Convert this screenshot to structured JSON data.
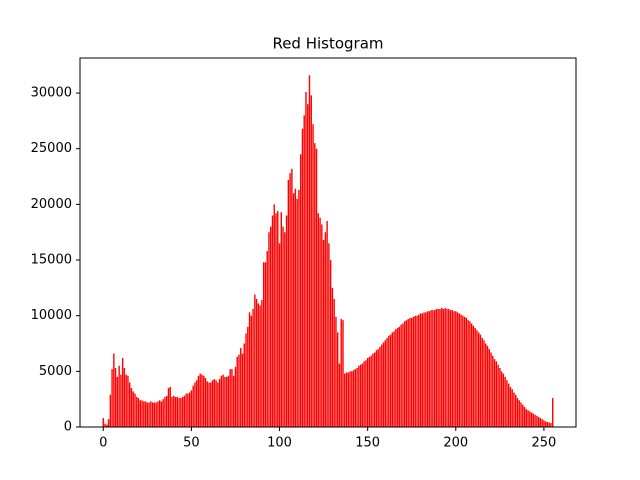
{
  "chart_data": {
    "type": "bar",
    "title": "Red Histogram",
    "color": "#ff0000",
    "bar_width": 0.8,
    "x": [
      0,
      1,
      2,
      3,
      4,
      5,
      6,
      7,
      8,
      9,
      10,
      11,
      12,
      13,
      14,
      15,
      16,
      17,
      18,
      19,
      20,
      21,
      22,
      23,
      24,
      25,
      26,
      27,
      28,
      29,
      30,
      31,
      32,
      33,
      34,
      35,
      36,
      37,
      38,
      39,
      40,
      41,
      42,
      43,
      44,
      45,
      46,
      47,
      48,
      49,
      50,
      51,
      52,
      53,
      54,
      55,
      56,
      57,
      58,
      59,
      60,
      61,
      62,
      63,
      64,
      65,
      66,
      67,
      68,
      69,
      70,
      71,
      72,
      73,
      74,
      75,
      76,
      77,
      78,
      79,
      80,
      81,
      82,
      83,
      84,
      85,
      86,
      87,
      88,
      89,
      90,
      91,
      92,
      93,
      94,
      95,
      96,
      97,
      98,
      99,
      100,
      101,
      102,
      103,
      104,
      105,
      106,
      107,
      108,
      109,
      110,
      111,
      112,
      113,
      114,
      115,
      116,
      117,
      118,
      119,
      120,
      121,
      122,
      123,
      124,
      125,
      126,
      127,
      128,
      129,
      130,
      131,
      132,
      133,
      134,
      135,
      136,
      137,
      138,
      139,
      140,
      141,
      142,
      143,
      144,
      145,
      146,
      147,
      148,
      149,
      150,
      151,
      152,
      153,
      154,
      155,
      156,
      157,
      158,
      159,
      160,
      161,
      162,
      163,
      164,
      165,
      166,
      167,
      168,
      169,
      170,
      171,
      172,
      173,
      174,
      175,
      176,
      177,
      178,
      179,
      180,
      181,
      182,
      183,
      184,
      185,
      186,
      187,
      188,
      189,
      190,
      191,
      192,
      193,
      194,
      195,
      196,
      197,
      198,
      199,
      200,
      201,
      202,
      203,
      204,
      205,
      206,
      207,
      208,
      209,
      210,
      211,
      212,
      213,
      214,
      215,
      216,
      217,
      218,
      219,
      220,
      221,
      222,
      223,
      224,
      225,
      226,
      227,
      228,
      229,
      230,
      231,
      232,
      233,
      234,
      235,
      236,
      237,
      238,
      239,
      240,
      241,
      242,
      243,
      244,
      245,
      246,
      247,
      248,
      249,
      250,
      251,
      252,
      253,
      254,
      255
    ],
    "values": [
      800,
      300,
      200,
      700,
      2900,
      5200,
      6600,
      5300,
      4500,
      5500,
      4700,
      6200,
      5300,
      4700,
      4600,
      4000,
      3500,
      3200,
      3000,
      2700,
      2600,
      2400,
      2400,
      2300,
      2300,
      2200,
      2200,
      2300,
      2200,
      2200,
      2200,
      2300,
      2400,
      2300,
      2500,
      2700,
      2800,
      3500,
      3600,
      2700,
      2800,
      2700,
      2700,
      2600,
      2600,
      2700,
      2800,
      3000,
      3000,
      3100,
      3300,
      3700,
      4000,
      4200,
      4600,
      4800,
      4700,
      4600,
      4400,
      4100,
      4000,
      4000,
      4200,
      4300,
      4200,
      4000,
      4300,
      4600,
      4700,
      4500,
      4500,
      4600,
      5200,
      5200,
      4600,
      5400,
      6300,
      6500,
      7100,
      6600,
      7500,
      8400,
      9000,
      10300,
      10000,
      10600,
      11900,
      11500,
      11100,
      10900,
      11400,
      14800,
      14800,
      15800,
      17500,
      18000,
      19000,
      20000,
      19200,
      19400,
      16500,
      19300,
      18000,
      17500,
      19000,
      22200,
      22800,
      23200,
      21000,
      21400,
      20500,
      21300,
      24500,
      26800,
      28000,
      30100,
      29000,
      31600,
      29800,
      27200,
      25500,
      25000,
      19200,
      18800,
      18200,
      16800,
      17500,
      18500,
      16500,
      15000,
      12500,
      11500,
      9900,
      8500,
      5700,
      9700,
      9600,
      4800,
      4900,
      4900,
      5000,
      5000,
      5100,
      5200,
      5300,
      5500,
      5600,
      5700,
      5900,
      6000,
      6200,
      6300,
      6400,
      6600,
      6700,
      6900,
      7000,
      7200,
      7400,
      7600,
      7800,
      8000,
      8200,
      8300,
      8500,
      8600,
      8800,
      8900,
      9000,
      9200,
      9300,
      9500,
      9600,
      9700,
      9800,
      9800,
      9900,
      10000,
      10000,
      10100,
      10200,
      10200,
      10300,
      10300,
      10400,
      10400,
      10500,
      10500,
      10500,
      10600,
      10600,
      10600,
      10700,
      10600,
      10700,
      10600,
      10600,
      10500,
      10500,
      10400,
      10400,
      10300,
      10200,
      10100,
      10000,
      9900,
      9800,
      9600,
      9500,
      9300,
      9100,
      8900,
      8700,
      8500,
      8300,
      8000,
      7800,
      7500,
      7300,
      7000,
      6700,
      6400,
      6100,
      5900,
      5600,
      5300,
      5000,
      4800,
      4500,
      4200,
      3900,
      3600,
      3400,
      3100,
      2900,
      2600,
      2400,
      2200,
      2000,
      1800,
      1600,
      1500,
      1400,
      1300,
      1200,
      1100,
      1000,
      900,
      800,
      700,
      600,
      500,
      450,
      400,
      350,
      2600
    ],
    "xlim": [
      -13.2,
      268.2
    ],
    "xticks": [
      0,
      50,
      100,
      150,
      200,
      250
    ],
    "ylim": [
      0,
      33150
    ],
    "yticks": [
      0,
      5000,
      10000,
      15000,
      20000,
      25000,
      30000
    ]
  }
}
